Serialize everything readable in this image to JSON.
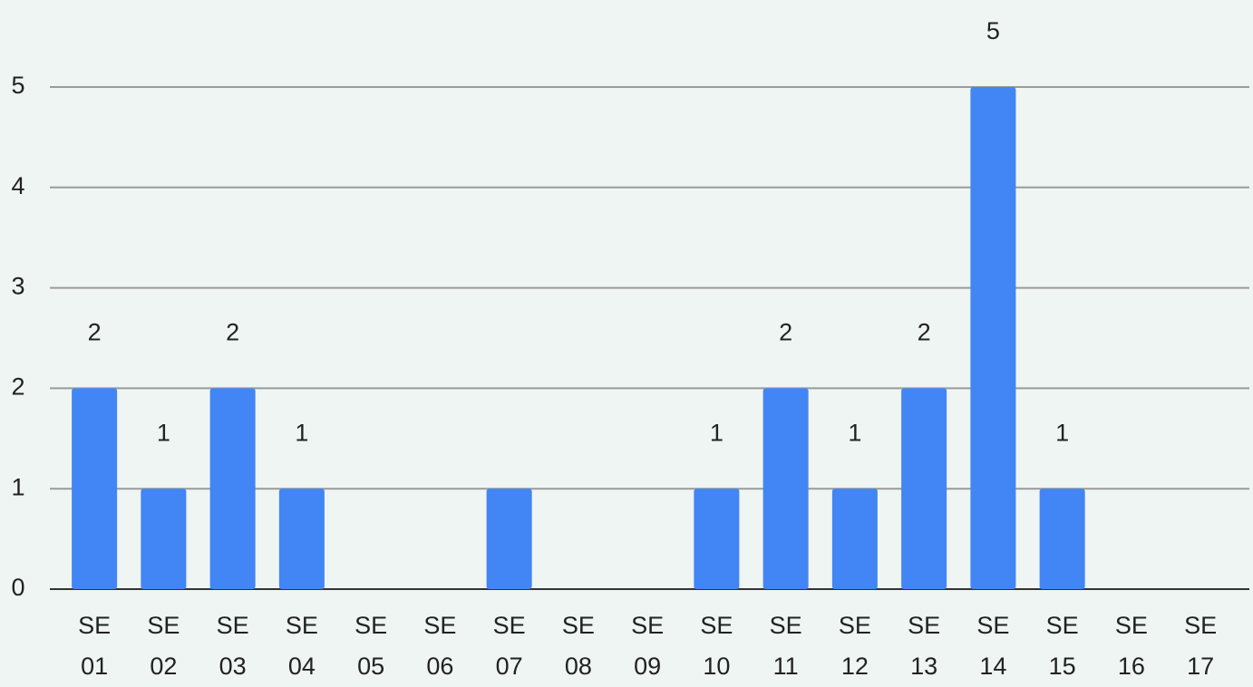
{
  "chart_data": {
    "type": "bar",
    "categories": [
      "SE 01",
      "SE 02",
      "SE 03",
      "SE 04",
      "SE 05",
      "SE 06",
      "SE 07",
      "SE 08",
      "SE 09",
      "SE 10",
      "SE 11",
      "SE 12",
      "SE 13",
      "SE 14",
      "SE 15",
      "SE 16",
      "SE 17"
    ],
    "values": [
      2,
      1,
      2,
      1,
      0,
      0,
      1,
      0,
      0,
      1,
      2,
      1,
      2,
      5,
      1,
      0,
      0
    ],
    "value_labels": [
      "2",
      "1",
      "2",
      "1",
      null,
      null,
      null,
      null,
      null,
      "1",
      "2",
      "1",
      "2",
      "5",
      "1",
      null,
      null
    ],
    "color": "#4285f4",
    "ylim": [
      0,
      5
    ],
    "yticks": [
      0,
      1,
      2,
      3,
      4,
      5
    ],
    "grid": true
  }
}
